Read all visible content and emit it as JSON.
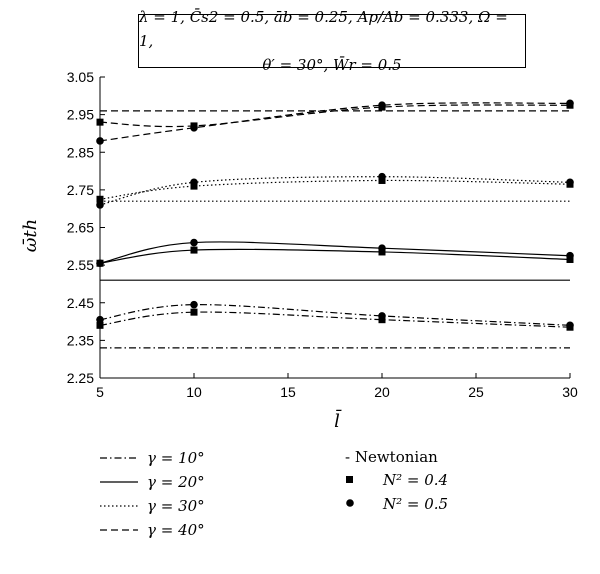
{
  "params_box": {
    "line1": "λ = 1, C̄s2 = 0.5, āb = 0.25, Ap/Ab = 0.333, Ω = 1,",
    "line2": "θ′ = 30°, W̄r = 0.5"
  },
  "chart_data": {
    "type": "line",
    "xlabel": "l̄",
    "ylabel": "ω̄th",
    "xlim": [
      5,
      30
    ],
    "ylim": [
      2.25,
      3.05
    ],
    "xticks": [
      5,
      10,
      15,
      20,
      25,
      30
    ],
    "yticks": [
      2.25,
      2.35,
      2.45,
      2.55,
      2.65,
      2.75,
      2.85,
      2.95,
      3.05
    ],
    "ytick_labels": [
      "2.25",
      "2.35",
      "2.45",
      "2.55",
      "2.65",
      "2.75",
      "2.85",
      "2.95",
      "3.05"
    ],
    "x": [
      5,
      10,
      20,
      30
    ],
    "grid": false,
    "series": [
      {
        "name": "γ = 10°",
        "style": "dashdot",
        "newtonian": 2.33,
        "n04": [
          2.39,
          2.425,
          2.405,
          2.385
        ],
        "n05": [
          2.405,
          2.445,
          2.415,
          2.39
        ]
      },
      {
        "name": "γ = 20°",
        "style": "solid",
        "newtonian": 2.51,
        "n04": [
          2.555,
          2.59,
          2.585,
          2.565
        ],
        "n05": [
          2.555,
          2.61,
          2.595,
          2.575
        ]
      },
      {
        "name": "γ = 30°",
        "style": "dotted",
        "newtonian": 2.72,
        "n04": [
          2.725,
          2.76,
          2.775,
          2.765
        ],
        "n05": [
          2.71,
          2.77,
          2.785,
          2.77
        ]
      },
      {
        "name": "γ = 40°",
        "style": "dashed",
        "newtonian": 2.96,
        "n04": [
          2.93,
          2.92,
          2.97,
          2.975
        ],
        "n05": [
          2.88,
          2.915,
          2.975,
          2.98
        ]
      }
    ],
    "marker_legend": {
      "newtonian": "- Newtonian",
      "n04": "N² = 0.4",
      "n05": "N² = 0.5"
    }
  }
}
